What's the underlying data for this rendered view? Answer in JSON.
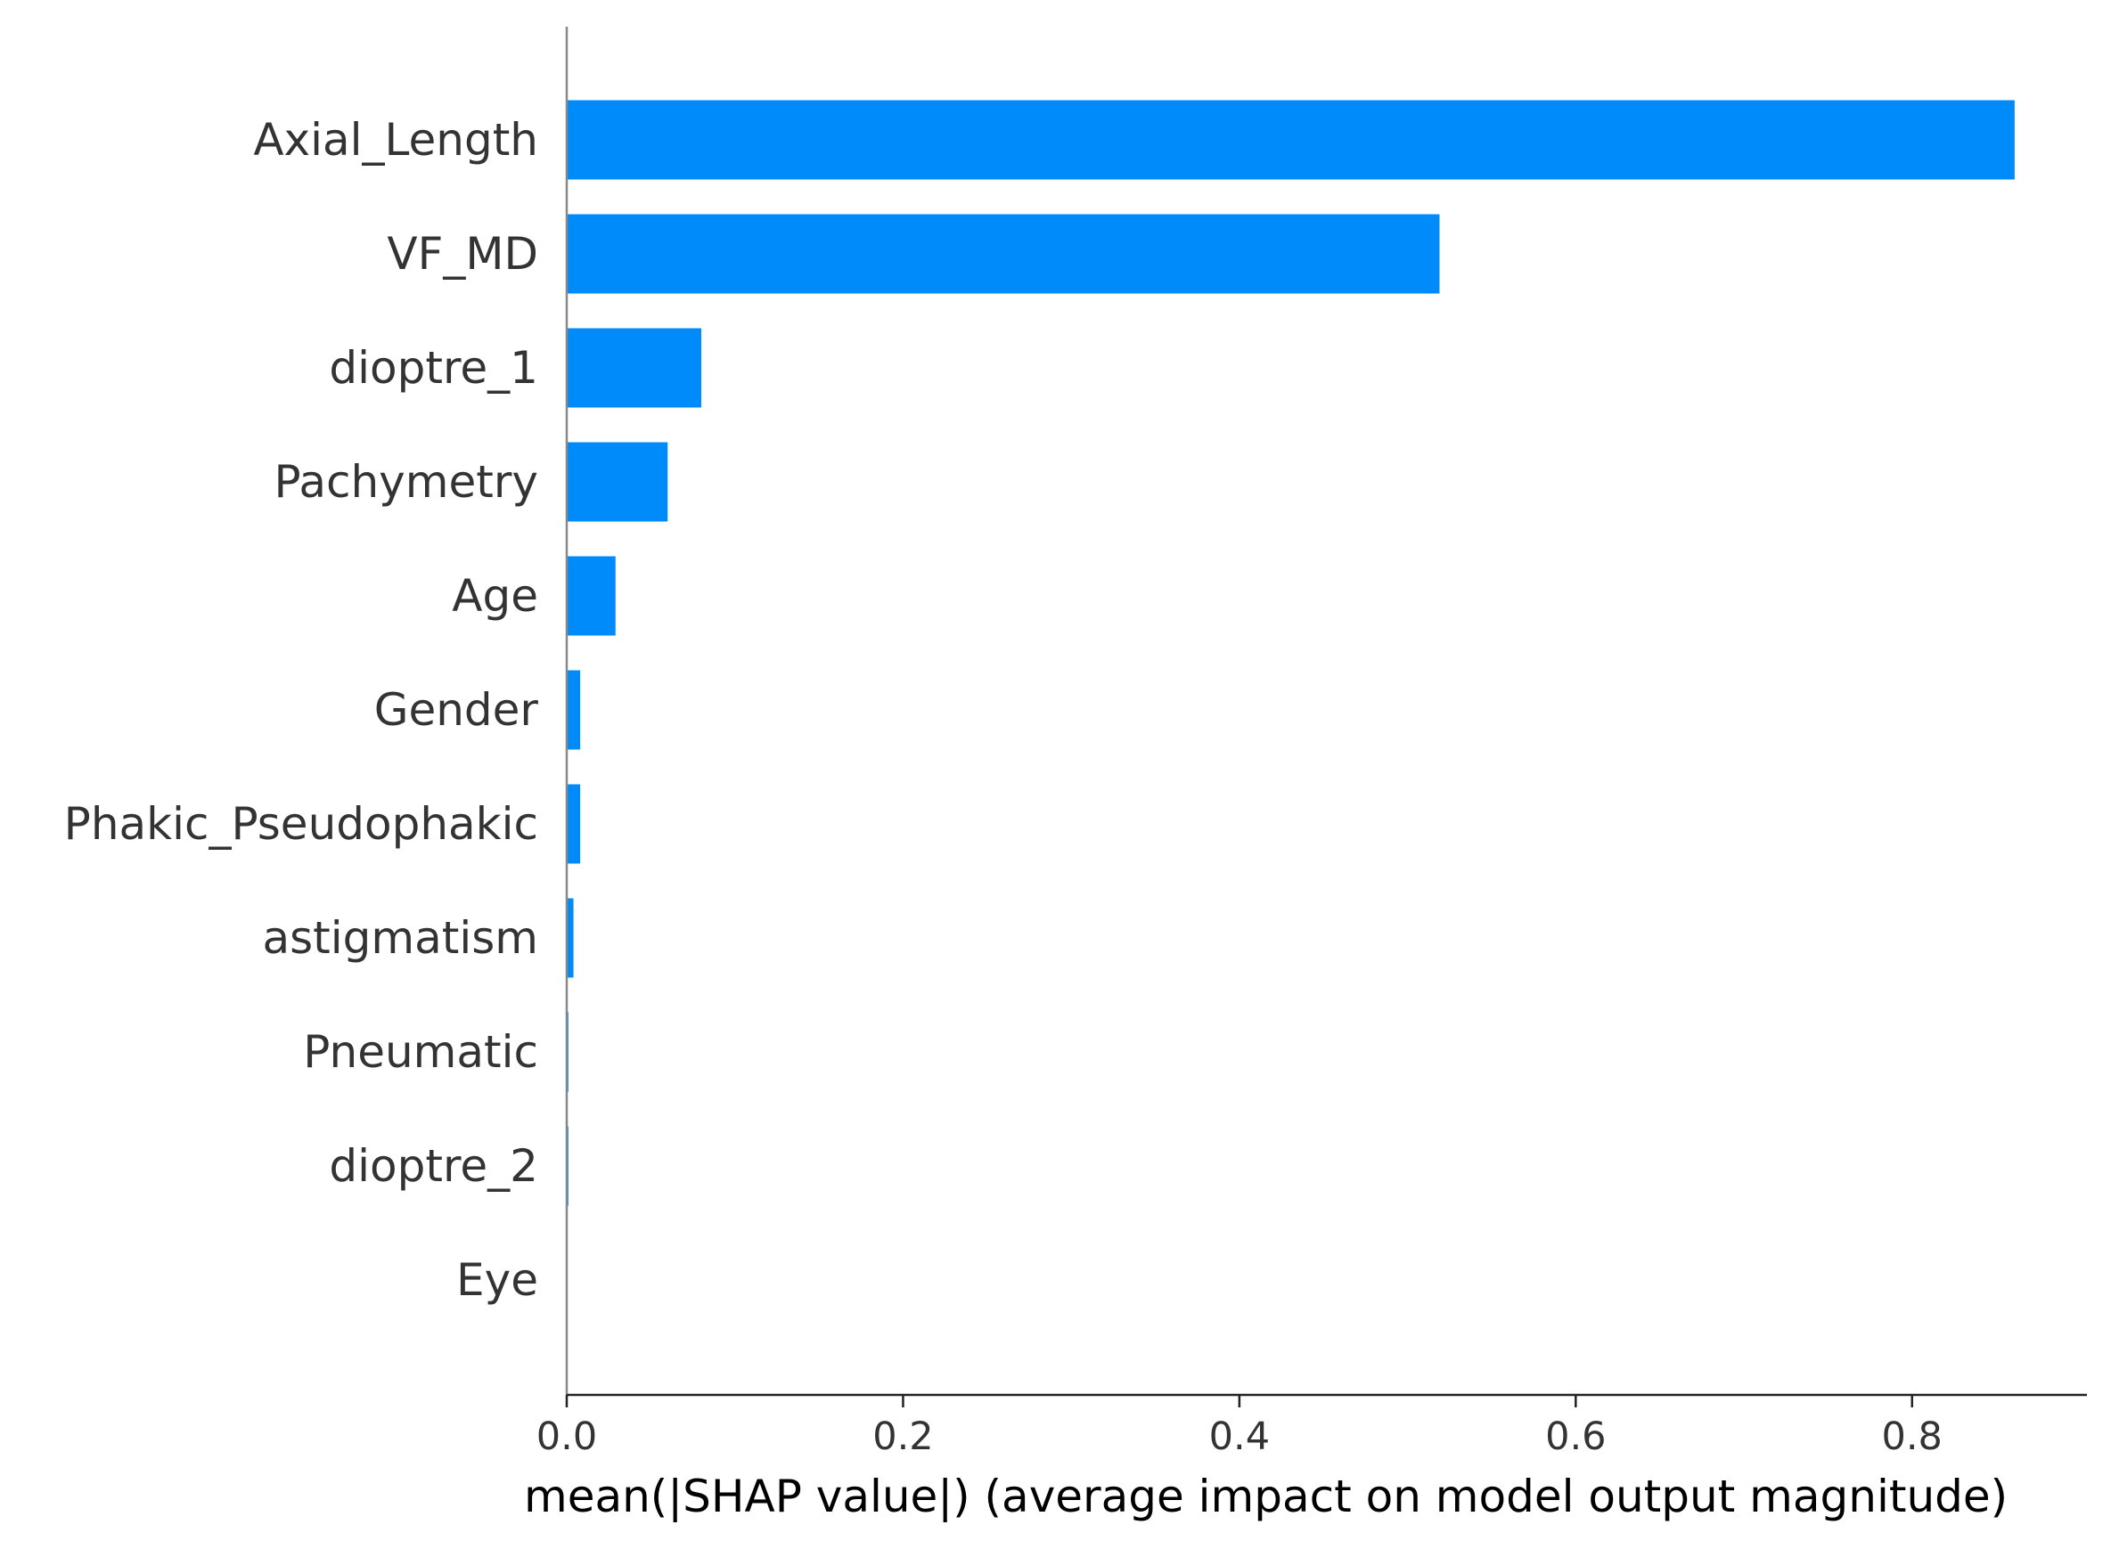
{
  "chart_data": {
    "type": "bar",
    "orientation": "horizontal",
    "categories": [
      "Axial_Length",
      "VF_MD",
      "dioptre_1",
      "Pachymetry",
      "Age",
      "Gender",
      "Phakic_Pseudophakic",
      "astigmatism",
      "Pneumatic",
      "dioptre_2",
      "Eye"
    ],
    "values": [
      0.861,
      0.519,
      0.08,
      0.06,
      0.029,
      0.008,
      0.008,
      0.004,
      0.001,
      0.001,
      0.0
    ],
    "xlabel": "mean(|SHAP value|) (average impact on model output magnitude)",
    "ylabel": "",
    "xlim": [
      0,
      0.904
    ],
    "xticks": [
      0.0,
      0.2,
      0.4,
      0.6,
      0.8
    ],
    "xtick_labels": [
      "0.0",
      "0.2",
      "0.4",
      "0.6",
      "0.8"
    ],
    "grid": false,
    "bar_color": "#008bfb",
    "axis_color": "#888888"
  }
}
